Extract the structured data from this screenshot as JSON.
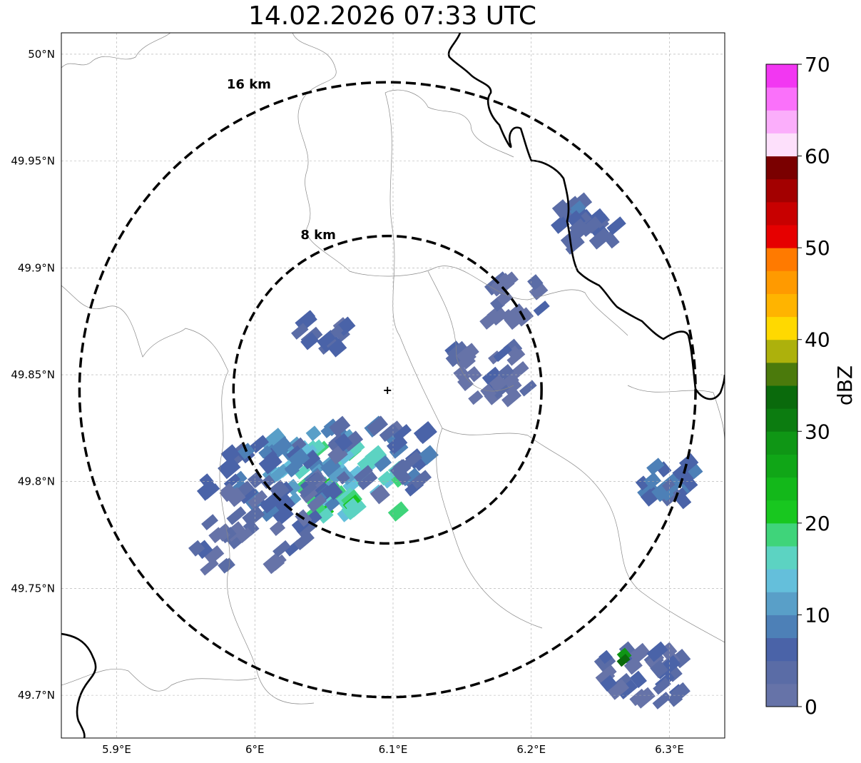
{
  "title": "14.02.2026 07:33 UTC",
  "map": {
    "lon_range": [
      5.86,
      6.34
    ],
    "lat_range": [
      49.68,
      50.01
    ],
    "lon_ticks": [
      {
        "value": 5.9,
        "label": "5.9°E"
      },
      {
        "value": 6.0,
        "label": "6°E"
      },
      {
        "value": 6.1,
        "label": "6.1°E"
      },
      {
        "value": 6.2,
        "label": "6.2°E"
      },
      {
        "value": 6.3,
        "label": "6.3°E"
      }
    ],
    "lat_ticks": [
      {
        "value": 50.0,
        "label": "50°N"
      },
      {
        "value": 49.95,
        "label": "49.95°N"
      },
      {
        "value": 49.9,
        "label": "49.9°N"
      },
      {
        "value": 49.85,
        "label": "49.85°N"
      },
      {
        "value": 49.8,
        "label": "49.8°N"
      },
      {
        "value": 49.75,
        "label": "49.75°N"
      },
      {
        "value": 49.7,
        "label": "49.7°N"
      }
    ],
    "gridlines": true,
    "radar_site": {
      "lon": 6.096,
      "lat": 49.843
    },
    "range_rings": [
      {
        "radius_km": 8,
        "label": "8 km"
      },
      {
        "radius_km": 16,
        "label": "16 km"
      }
    ],
    "reflectivity_cells_dbz": [
      {
        "lon": 6.07,
        "lat": 49.8,
        "dbz": 17
      },
      {
        "lon": 6.055,
        "lat": 49.79,
        "dbz": 20
      },
      {
        "lon": 6.04,
        "lat": 49.81,
        "dbz": 12
      },
      {
        "lon": 6.02,
        "lat": 49.8,
        "dbz": 8
      },
      {
        "lon": 6.0,
        "lat": 49.78,
        "dbz": 4
      },
      {
        "lon": 6.09,
        "lat": 49.81,
        "dbz": 6
      },
      {
        "lon": 6.05,
        "lat": 49.87,
        "dbz": 5
      },
      {
        "lon": 6.17,
        "lat": 49.85,
        "dbz": 3
      },
      {
        "lon": 6.24,
        "lat": 49.92,
        "dbz": 6
      },
      {
        "lon": 6.19,
        "lat": 49.885,
        "dbz": 3
      },
      {
        "lon": 6.3,
        "lat": 49.8,
        "dbz": 7
      },
      {
        "lon": 6.28,
        "lat": 49.71,
        "dbz": 4
      },
      {
        "lon": 6.27,
        "lat": 49.718,
        "dbz": 32
      }
    ]
  },
  "colorbar": {
    "label": "dBZ",
    "ticks": [
      "0",
      "10",
      "20",
      "30",
      "40",
      "50",
      "60",
      "70"
    ],
    "min": 0,
    "max": 70,
    "step": 2.5,
    "colors": [
      "#6673a8",
      "#5a6ca6",
      "#4a63a8",
      "#4d80b7",
      "#599fc8",
      "#64bfdb",
      "#5cd3c2",
      "#3fd47a",
      "#18c71f",
      "#13b81a",
      "#10a617",
      "#0f9615",
      "#0c7c10",
      "#0a6a0c",
      "#4b7a0c",
      "#adb10c",
      "#ffd900",
      "#ffb400",
      "#ff9a00",
      "#ff7a00",
      "#e60000",
      "#c80000",
      "#a30000",
      "#7a0000",
      "#fde0fb",
      "#fbaefb",
      "#fa71fa",
      "#f237f2"
    ]
  }
}
